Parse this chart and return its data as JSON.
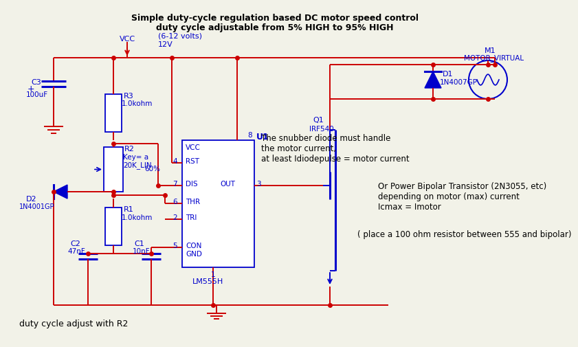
{
  "title_line1": "Simple duty-cycle regulation based DC motor speed control",
  "title_line2": "duty cycle adjustable from 5% HIGH to 95% HIGH",
  "bg_color": "#f2f2e8",
  "blue": "#0000cc",
  "red": "#cc0000",
  "black": "#000000",
  "annotation1_line1": "The snubber diode must handle",
  "annotation1_line2": "the motor current,",
  "annotation1_line3": "at least Idiodepulse = motor current",
  "annotation2_line1": "Or Power Bipolar Transistor (2N3055, etc)",
  "annotation2_line2": "depending on motor (max) current",
  "annotation2_line3": "Icmax = Imotor",
  "annotation3": "( place a 100 ohm resistor between 555 and bipolar)",
  "bottom_label": "duty cycle adjust with R2",
  "vcc_label": "VCC",
  "vcc_voltage": "(6-12 volts)",
  "vcc_12v": "12V"
}
